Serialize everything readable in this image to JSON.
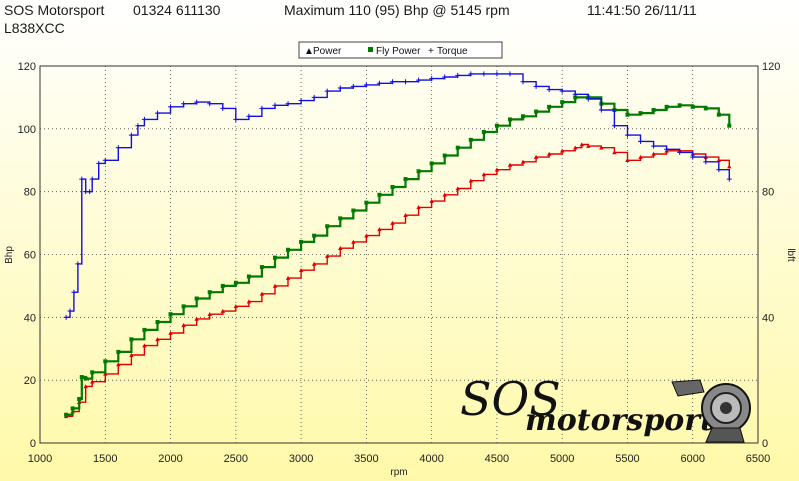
{
  "header": {
    "company": "SOS Motorsport",
    "phone": "01324 611130",
    "maximum": "Maximum 110 (95) Bhp @ 5145 rpm",
    "timestamp": "11:41:50 26/11/11",
    "reg": "L838XCC"
  },
  "logo": {
    "word1": "SOS",
    "word2": "motorsport",
    "icon": "turbo-icon"
  },
  "colors": {
    "power": "#e00000",
    "fly_power": "#007a00",
    "torque": "#1010e0",
    "background_top": "#ffffff",
    "background_bottom": "#fff9a8"
  },
  "chart_data": {
    "type": "line",
    "xlabel": "rpm",
    "ylabel_left": "Bhp",
    "ylabel_right": "lbft",
    "xlim": [
      1000,
      6500
    ],
    "ylim": [
      0,
      120
    ],
    "x_ticks": [
      1000,
      1500,
      2000,
      2500,
      3000,
      3500,
      4000,
      4500,
      5000,
      5500,
      6000,
      6500
    ],
    "y_ticks": [
      0,
      20,
      40,
      60,
      80,
      100,
      120
    ],
    "right_ticks": [
      0,
      40,
      80,
      120
    ],
    "grid": true,
    "legend": [
      "Power",
      "Fly Power",
      "Torque"
    ],
    "legend_placement": "top-center",
    "series": [
      {
        "name": "Power",
        "x": [
          1200,
          1250,
          1300,
          1350,
          1400,
          1500,
          1600,
          1700,
          1800,
          1900,
          2000,
          2100,
          2200,
          2300,
          2400,
          2500,
          2600,
          2700,
          2800,
          2900,
          3000,
          3100,
          3200,
          3300,
          3400,
          3500,
          3600,
          3700,
          3800,
          3900,
          4000,
          4100,
          4200,
          4300,
          4400,
          4500,
          4600,
          4700,
          4800,
          4900,
          5000,
          5100,
          5150,
          5200,
          5300,
          5400,
          5500,
          5600,
          5700,
          5800,
          5900,
          6000,
          6100,
          6200,
          6280
        ],
        "y": [
          8.5,
          10,
          13,
          18,
          19.5,
          22,
          25,
          28,
          31,
          33,
          35,
          37.5,
          39.5,
          41,
          42,
          43.5,
          45,
          47.5,
          50,
          52.5,
          55,
          57,
          59.5,
          62,
          64,
          66,
          68,
          70,
          72.5,
          75,
          77,
          79,
          81,
          83.5,
          85.5,
          87,
          88.5,
          89.5,
          91,
          92,
          93,
          94,
          95,
          94.5,
          94,
          92.5,
          90,
          91,
          92,
          93,
          93,
          92,
          91,
          90,
          88
        ]
      },
      {
        "name": "Fly Power",
        "x": [
          1200,
          1250,
          1300,
          1320,
          1350,
          1400,
          1500,
          1600,
          1700,
          1800,
          1900,
          2000,
          2100,
          2200,
          2300,
          2400,
          2500,
          2600,
          2700,
          2800,
          2900,
          3000,
          3100,
          3200,
          3300,
          3400,
          3500,
          3600,
          3700,
          3800,
          3900,
          4000,
          4100,
          4200,
          4300,
          4400,
          4500,
          4600,
          4700,
          4800,
          4900,
          5000,
          5100,
          5200,
          5300,
          5400,
          5500,
          5600,
          5700,
          5800,
          5900,
          6000,
          6100,
          6200,
          6280
        ],
        "y": [
          9,
          11,
          14,
          21,
          20.5,
          22.5,
          26,
          29,
          33,
          36,
          38.5,
          41,
          43.5,
          46,
          48,
          50,
          51,
          53,
          56,
          59,
          61.5,
          64,
          66,
          69,
          71.5,
          74,
          76.5,
          79,
          81.5,
          84,
          86.5,
          89,
          91.5,
          94,
          96.5,
          99,
          101,
          103,
          104,
          105.5,
          107,
          108.5,
          110,
          110,
          108,
          106,
          104.5,
          105,
          106,
          107,
          107.5,
          107,
          106.5,
          104.5,
          101
        ]
      },
      {
        "name": "Torque",
        "x": [
          1200,
          1230,
          1260,
          1290,
          1320,
          1350,
          1380,
          1400,
          1450,
          1500,
          1600,
          1700,
          1750,
          1800,
          1900,
          2000,
          2100,
          2200,
          2300,
          2400,
          2500,
          2600,
          2700,
          2800,
          2900,
          3000,
          3100,
          3200,
          3300,
          3400,
          3500,
          3600,
          3700,
          3800,
          3900,
          4000,
          4100,
          4200,
          4300,
          4400,
          4500,
          4600,
          4700,
          4800,
          4900,
          5000,
          5100,
          5200,
          5300,
          5400,
          5500,
          5600,
          5700,
          5800,
          5900,
          6000,
          6100,
          6200,
          6280
        ],
        "y": [
          40,
          42,
          48,
          57,
          84,
          80,
          80,
          84,
          89,
          90,
          94,
          98,
          101,
          103,
          105,
          107,
          108,
          108.5,
          108,
          106.5,
          103,
          104,
          106.5,
          107.5,
          108,
          109,
          110,
          112,
          113,
          113.5,
          114,
          114.5,
          115,
          115,
          115.5,
          116,
          116.5,
          117,
          117.5,
          117.5,
          117.5,
          117.5,
          115,
          113.5,
          112.5,
          112,
          111,
          109.5,
          106,
          101,
          98,
          96,
          94.5,
          93.5,
          92.5,
          91,
          89.5,
          87,
          84
        ]
      }
    ]
  }
}
